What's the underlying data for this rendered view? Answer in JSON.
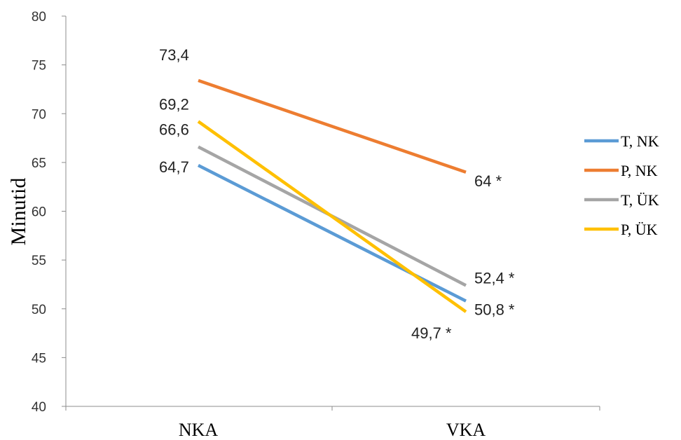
{
  "chart_data": {
    "type": "line",
    "categories": [
      "NKA",
      "VKA"
    ],
    "ylabel": "Minutid",
    "ylim": [
      40,
      80
    ],
    "yticks": [
      40,
      45,
      50,
      55,
      60,
      65,
      70,
      75,
      80
    ],
    "grid": false,
    "legend_position": "right",
    "series": [
      {
        "name": "T, NK",
        "color": "#5B9BD5",
        "values": [
          64.7,
          50.8
        ],
        "labels": [
          "64,7",
          "50,8 *"
        ]
      },
      {
        "name": "P, NK",
        "color": "#ED7D31",
        "values": [
          73.4,
          64.0
        ],
        "labels": [
          "73,4",
          "64 *"
        ]
      },
      {
        "name": "T, ÜK",
        "color": "#A5A5A5",
        "values": [
          66.6,
          52.4
        ],
        "labels": [
          "66,6",
          "52,4 *"
        ]
      },
      {
        "name": "P, ÜK",
        "color": "#FFC000",
        "values": [
          69.2,
          49.7
        ],
        "labels": [
          "69,2",
          "49,7 *"
        ]
      }
    ]
  }
}
